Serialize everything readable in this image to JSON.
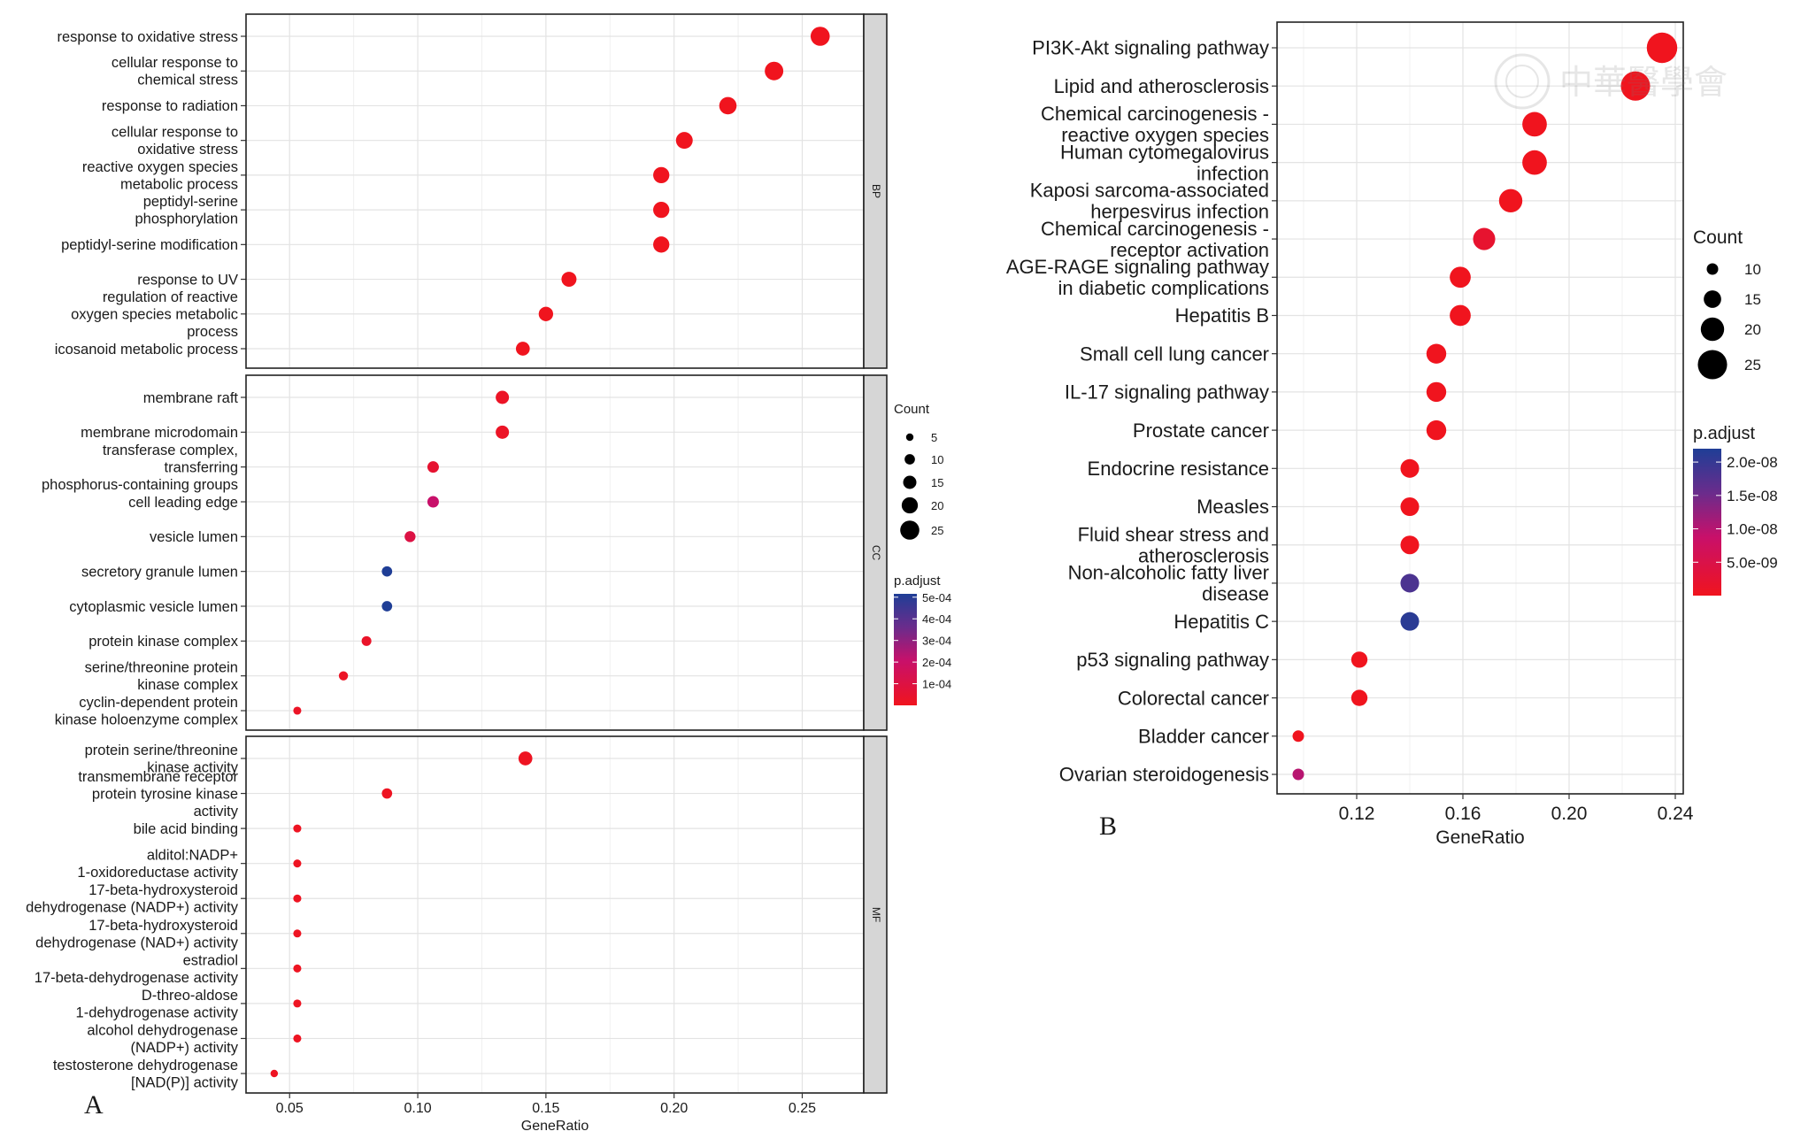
{
  "panel_labels": {
    "a": "A",
    "b": "B"
  },
  "watermark": "中華醫學會",
  "chart_data": [
    {
      "type": "scatter",
      "subtype": "dot-plot",
      "panel": "A",
      "xlabel": "GeneRatio",
      "ylabel": "",
      "xticks": [
        0.05,
        0.1,
        0.15,
        0.2,
        0.25
      ],
      "xlim": [
        0.033,
        0.274
      ],
      "grid": true,
      "legend_position": "right",
      "size_legend": {
        "title": "Count",
        "values": [
          5,
          10,
          15,
          20,
          25
        ]
      },
      "color_legend": {
        "title": "p.adjust",
        "ticks": [
          "5e-04",
          "4e-04",
          "3e-04",
          "2e-04",
          "1e-04"
        ],
        "low_color": "#e8121e",
        "high_color": "#1f3e96",
        "min": 0.0,
        "max": 0.0005
      },
      "facets": [
        {
          "strip": "BP",
          "terms": [
            {
              "label": [
                "response to oxidative stress"
              ],
              "x": 0.257,
              "count": 25,
              "padj": 1e-06
            },
            {
              "label": [
                "cellular response to",
                "chemical stress"
              ],
              "x": 0.239,
              "count": 24,
              "padj": 1e-06
            },
            {
              "label": [
                "response to radiation"
              ],
              "x": 0.221,
              "count": 22,
              "padj": 1e-06
            },
            {
              "label": [
                "cellular response to",
                "oxidative stress"
              ],
              "x": 0.204,
              "count": 21,
              "padj": 1e-06
            },
            {
              "label": [
                "reactive oxygen species",
                "metabolic process"
              ],
              "x": 0.195,
              "count": 20,
              "padj": 1e-06
            },
            {
              "label": [
                "peptidyl-serine",
                "phosphorylation"
              ],
              "x": 0.195,
              "count": 20,
              "padj": 1e-06
            },
            {
              "label": [
                "peptidyl-serine modification"
              ],
              "x": 0.195,
              "count": 20,
              "padj": 1e-06
            },
            {
              "label": [
                "response to UV"
              ],
              "x": 0.159,
              "count": 18,
              "padj": 1e-06
            },
            {
              "label": [
                "regulation of reactive",
                "oxygen species metabolic",
                "process"
              ],
              "x": 0.15,
              "count": 17,
              "padj": 1e-06
            },
            {
              "label": [
                "icosanoid metabolic process"
              ],
              "x": 0.141,
              "count": 16,
              "padj": 1e-06
            }
          ]
        },
        {
          "strip": "CC",
          "terms": [
            {
              "label": [
                "membrane raft"
              ],
              "x": 0.133,
              "count": 15,
              "padj": 2e-05
            },
            {
              "label": [
                "membrane microdomain"
              ],
              "x": 0.133,
              "count": 15,
              "padj": 2e-05
            },
            {
              "label": [
                "transferase complex,",
                "transferring",
                "phosphorus-containing groups"
              ],
              "x": 0.106,
              "count": 12,
              "padj": 5e-05
            },
            {
              "label": [
                "cell leading edge"
              ],
              "x": 0.106,
              "count": 12,
              "padj": 0.0002
            },
            {
              "label": [
                "vesicle lumen"
              ],
              "x": 0.097,
              "count": 11,
              "padj": 0.0001
            },
            {
              "label": [
                "secretory granule lumen"
              ],
              "x": 0.088,
              "count": 10,
              "padj": 0.0005
            },
            {
              "label": [
                "cytoplasmic vesicle lumen"
              ],
              "x": 0.088,
              "count": 10,
              "padj": 0.0005
            },
            {
              "label": [
                "protein kinase complex"
              ],
              "x": 0.08,
              "count": 9,
              "padj": 3e-05
            },
            {
              "label": [
                "serine/threonine protein",
                "kinase complex"
              ],
              "x": 0.071,
              "count": 8,
              "padj": 2e-05
            },
            {
              "label": [
                "cyclin-dependent protein",
                "kinase holoenzyme complex"
              ],
              "x": 0.053,
              "count": 6,
              "padj": 2e-05
            }
          ]
        },
        {
          "strip": "MF",
          "terms": [
            {
              "label": [
                "protein serine/threonine",
                "kinase activity"
              ],
              "x": 0.142,
              "count": 16,
              "padj": 1e-05
            },
            {
              "label": [
                "transmembrane receptor",
                "protein tyrosine kinase",
                "activity"
              ],
              "x": 0.088,
              "count": 10,
              "padj": 1e-05
            },
            {
              "label": [
                "bile acid binding"
              ],
              "x": 0.053,
              "count": 6,
              "padj": 1e-05
            },
            {
              "label": [
                "alditol:NADP+",
                "1-oxidoreductase activity"
              ],
              "x": 0.053,
              "count": 6,
              "padj": 1e-05
            },
            {
              "label": [
                "17-beta-hydroxysteroid",
                "dehydrogenase (NADP+) activity"
              ],
              "x": 0.053,
              "count": 6,
              "padj": 1e-05
            },
            {
              "label": [
                "17-beta-hydroxysteroid",
                "dehydrogenase (NAD+) activity"
              ],
              "x": 0.053,
              "count": 6,
              "padj": 1e-05
            },
            {
              "label": [
                "estradiol",
                "17-beta-dehydrogenase activity"
              ],
              "x": 0.053,
              "count": 6,
              "padj": 1e-05
            },
            {
              "label": [
                "D-threo-aldose",
                "1-dehydrogenase activity"
              ],
              "x": 0.053,
              "count": 6,
              "padj": 1e-05
            },
            {
              "label": [
                "alcohol dehydrogenase",
                "(NADP+) activity"
              ],
              "x": 0.053,
              "count": 6,
              "padj": 1e-05
            },
            {
              "label": [
                "testosterone dehydrogenase",
                "[NAD(P)] activity"
              ],
              "x": 0.044,
              "count": 5,
              "padj": 1e-05
            }
          ]
        }
      ]
    },
    {
      "type": "scatter",
      "subtype": "dot-plot",
      "panel": "B",
      "xlabel": "GeneRatio",
      "ylabel": "",
      "xticks": [
        0.12,
        0.16,
        0.2,
        0.24
      ],
      "xlim": [
        0.09,
        0.243
      ],
      "grid": true,
      "legend_position": "right",
      "size_legend": {
        "title": "Count",
        "values": [
          10,
          15,
          20,
          25
        ]
      },
      "color_legend": {
        "title": "p.adjust",
        "ticks": [
          "2.0e-08",
          "1.5e-08",
          "1.0e-08",
          "5.0e-09"
        ],
        "low_color": "#e8121e",
        "high_color": "#1f3e96",
        "min": 0.0,
        "max": 2.2e-08
      },
      "terms": [
        {
          "label": [
            "PI3K-Akt signaling pathway"
          ],
          "x": 0.235,
          "count": 26,
          "padj": 1e-15
        },
        {
          "label": [
            "Lipid and atherosclerosis"
          ],
          "x": 0.225,
          "count": 25,
          "padj": 1e-15
        },
        {
          "label": [
            "Chemical carcinogenesis -",
            "reactive oxygen species"
          ],
          "x": 0.187,
          "count": 21,
          "padj": 1e-14
        },
        {
          "label": [
            "Human cytomegalovirus",
            "infection"
          ],
          "x": 0.187,
          "count": 21,
          "padj": 1e-14
        },
        {
          "label": [
            "Kaposi sarcoma-associated",
            "herpesvirus infection"
          ],
          "x": 0.178,
          "count": 20,
          "padj": 1e-12
        },
        {
          "label": [
            "Chemical carcinogenesis -",
            "receptor activation"
          ],
          "x": 0.168,
          "count": 19,
          "padj": 2e-09
        },
        {
          "label": [
            "AGE-RAGE signaling pathway",
            "in diabetic complications"
          ],
          "x": 0.159,
          "count": 18,
          "padj": 1e-11
        },
        {
          "label": [
            "Hepatitis B"
          ],
          "x": 0.159,
          "count": 18,
          "padj": 1e-11
        },
        {
          "label": [
            "Small cell lung cancer"
          ],
          "x": 0.15,
          "count": 17,
          "padj": 1e-11
        },
        {
          "label": [
            "IL-17 signaling pathway"
          ],
          "x": 0.15,
          "count": 17,
          "padj": 1e-11
        },
        {
          "label": [
            "Prostate cancer"
          ],
          "x": 0.15,
          "count": 17,
          "padj": 1e-11
        },
        {
          "label": [
            "Endocrine resistance"
          ],
          "x": 0.14,
          "count": 16,
          "padj": 1e-11
        },
        {
          "label": [
            "Measles"
          ],
          "x": 0.14,
          "count": 16,
          "padj": 1e-11
        },
        {
          "label": [
            "Fluid shear stress and",
            "atherosclerosis"
          ],
          "x": 0.14,
          "count": 16,
          "padj": 1e-10
        },
        {
          "label": [
            "Non-alcoholic fatty liver",
            "disease"
          ],
          "x": 0.14,
          "count": 16,
          "padj": 1.8e-08
        },
        {
          "label": [
            "Hepatitis C"
          ],
          "x": 0.14,
          "count": 16,
          "padj": 2.1e-08
        },
        {
          "label": [
            "p53 signaling pathway"
          ],
          "x": 0.121,
          "count": 14,
          "padj": 1e-11
        },
        {
          "label": [
            "Colorectal cancer"
          ],
          "x": 0.121,
          "count": 14,
          "padj": 1e-11
        },
        {
          "label": [
            "Bladder cancer"
          ],
          "x": 0.098,
          "count": 10,
          "padj": 1e-11
        },
        {
          "label": [
            "Ovarian steroidogenesis"
          ],
          "x": 0.098,
          "count": 10,
          "padj": 1e-08
        }
      ]
    }
  ]
}
